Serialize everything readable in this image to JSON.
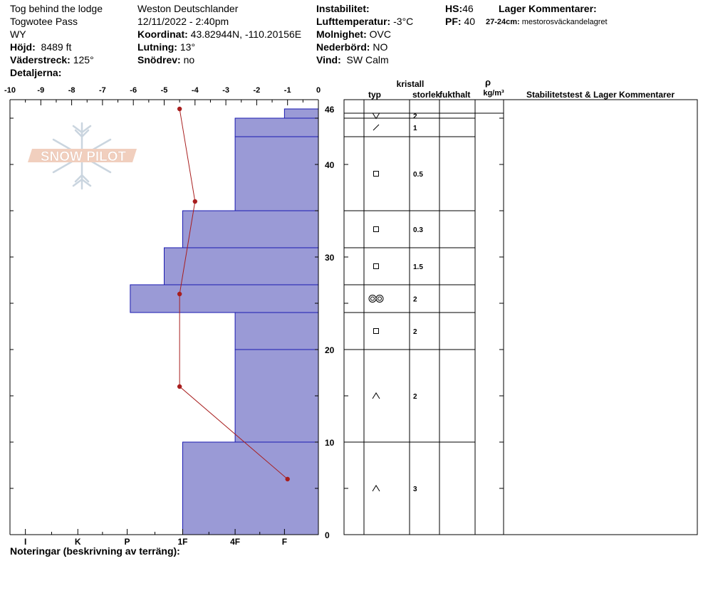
{
  "header": {
    "location_name": "Tog behind the lodge",
    "area": "Togwotee Pass",
    "state": "WY",
    "elevation_label": "Höjd:",
    "elevation_value": "8489 ft",
    "aspect_label": "Väderstreck:",
    "aspect_value": "125°",
    "details_label": "Detaljerna:",
    "observer": "Weston Deutschlander",
    "datetime": "12/11/2022 - 2:40pm",
    "coord_label": "Koordinat:",
    "coord_value": "43.82944N, -110.20156E",
    "slope_label": "Lutning:",
    "slope_value": "13°",
    "drift_label": "Snödrev:",
    "drift_value": "no",
    "instability_label": "Instabilitet:",
    "air_temp_label": "Lufttemperatur:",
    "air_temp_value": "-3°C",
    "sky_label": "Molnighet:",
    "sky_value": "OVC",
    "precip_label": "Nederbörd:",
    "precip_value": "NO",
    "wind_label": "Vind:",
    "wind_value": "SW Calm",
    "hs_label": "HS:",
    "hs_value": "46",
    "pf_label": "PF:",
    "pf_value": "40",
    "layer_comments_label": "Lager Kommentarer:",
    "layer_comment_depth": "27-24cm:",
    "layer_comment_text": "mestorosväckandelagret"
  },
  "logo": {
    "text": "SNOW PILOT"
  },
  "table_headers": {
    "crystal": "kristall",
    "type": "typ",
    "size": "storlek",
    "moisture": "fukthalt",
    "rho": "ρ",
    "density_unit": "kg/m³",
    "stability": "Stabilitetstest & Lager Kommentarer"
  },
  "notes_label": "Noteringar (beskrivning av terräng):",
  "chart_data": {
    "type": "snow_profile",
    "temp_axis": {
      "min": -10,
      "max": 0,
      "ticks": [
        "-10",
        "-9",
        "-8",
        "-7",
        "-6",
        "-5",
        "-4",
        "-3",
        "-2",
        "-1",
        "0"
      ]
    },
    "depth_axis": {
      "min": 0,
      "max": 47,
      "ticks": [
        "0",
        "10",
        "20",
        "30",
        "40",
        "46"
      ]
    },
    "hardness_ticks": [
      {
        "label": "I",
        "temp": -9.5
      },
      {
        "label": "K",
        "temp": -7.8
      },
      {
        "label": "P",
        "temp": -6.2
      },
      {
        "label": "1F",
        "temp": -4.4
      },
      {
        "label": "4F",
        "temp": -2.7
      },
      {
        "label": "F",
        "temp": -1.1
      }
    ],
    "layers": [
      {
        "top": 46,
        "bottom": 45,
        "hardness_temp": -1.1,
        "grain": "v",
        "size": "2"
      },
      {
        "top": 45,
        "bottom": 43,
        "hardness_temp": -2.7,
        "grain": "slash",
        "size": "1"
      },
      {
        "top": 43,
        "bottom": 35,
        "hardness_temp": -2.7,
        "grain": "square",
        "size": "0.5"
      },
      {
        "top": 35,
        "bottom": 31,
        "hardness_temp": -4.4,
        "grain": "square",
        "size": "0.3"
      },
      {
        "top": 31,
        "bottom": 27,
        "hardness_temp": -5.0,
        "grain": "square",
        "size": "1.5"
      },
      {
        "top": 27,
        "bottom": 24,
        "hardness_temp": -6.1,
        "grain": "double-circle",
        "size": "2"
      },
      {
        "top": 24,
        "bottom": 20,
        "hardness_temp": -2.7,
        "grain": "square",
        "size": "2"
      },
      {
        "top": 20,
        "bottom": 10,
        "hardness_temp": -2.7,
        "grain": "caret",
        "size": "2"
      },
      {
        "top": 10,
        "bottom": 0,
        "hardness_temp": -4.4,
        "grain": "caret",
        "size": "3"
      }
    ],
    "temperature_profile": [
      {
        "depth": 46,
        "temp": -4.5
      },
      {
        "depth": 36,
        "temp": -4.0
      },
      {
        "depth": 26,
        "temp": -4.5
      },
      {
        "depth": 16,
        "temp": -4.5
      },
      {
        "depth": 6,
        "temp": -1.0
      }
    ],
    "colors": {
      "hardness_fill": "#9a9ad6",
      "hardness_stroke": "#1a1ab0",
      "temp_line": "#a81e1e"
    }
  }
}
